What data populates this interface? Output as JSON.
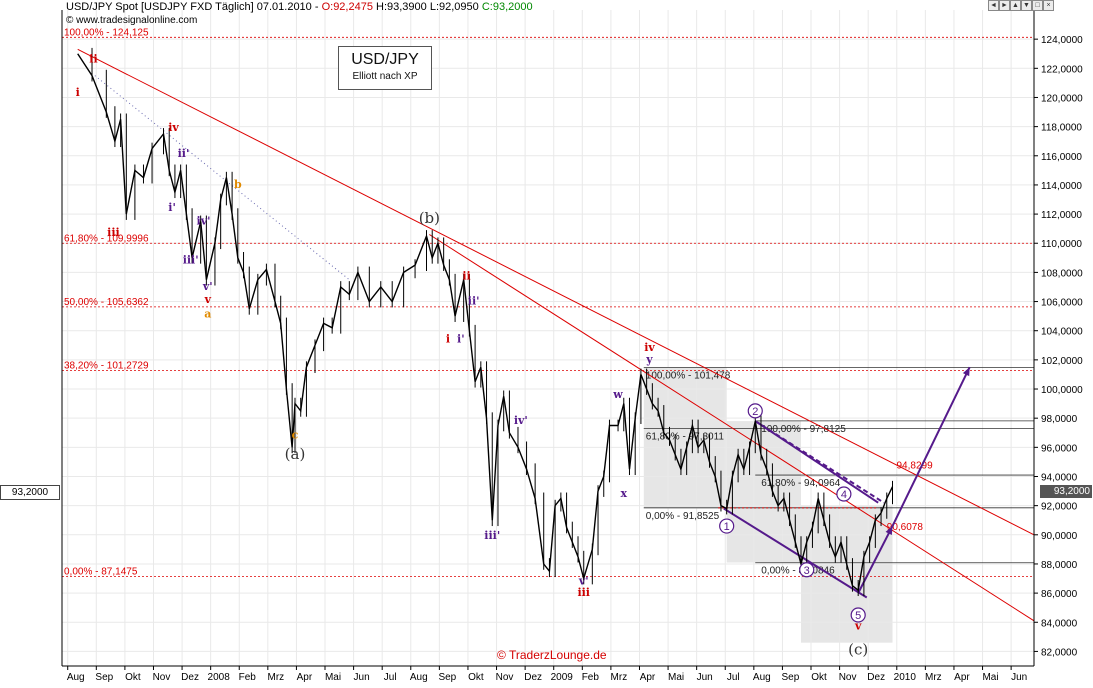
{
  "header": {
    "title": "USD/JPY Spot [USDJPY FXD  Täglich] 07.01.2010",
    "open": "O:92,2475",
    "high": "H:93,3900",
    "low": "L:92,0950",
    "close": "C:93,2000",
    "copyright": "© www.tradesignalonline.com"
  },
  "window_buttons": [
    "◄",
    "►",
    "▲",
    "▼",
    "□",
    "×"
  ],
  "titlebox": {
    "line1": "USD/JPY",
    "line2": "Elliott nach XP"
  },
  "footer_credit": "© TraderzLounge.de",
  "current_price_tag": "93,2000",
  "colors": {
    "price": "#000000",
    "trend": "#dd0000",
    "fib": "#dd0000",
    "wave_purple": "#551a8b",
    "wave_red": "#cc0000",
    "wave_orange": "#e08a00",
    "zone_fill": "#e6e6e6",
    "grid": "#e9e9e9"
  },
  "chart_data": {
    "type": "line",
    "y_axis": {
      "min": 81,
      "max": 126,
      "side": "right",
      "ticks": [
        82,
        84,
        86,
        88,
        90,
        92,
        94,
        96,
        98,
        100,
        102,
        104,
        106,
        108,
        110,
        112,
        114,
        116,
        118,
        120,
        122,
        124
      ],
      "tick_labels": [
        "82,0000",
        "84,0000",
        "86,0000",
        "88,0000",
        "90,0000",
        "92,0000",
        "94,0000",
        "96,0000",
        "98,0000",
        "100,0000",
        "102,0000",
        "104,0000",
        "106,0000",
        "108,0000",
        "110,0000",
        "112,0000",
        "114,0000",
        "116,0000",
        "118,0000",
        "120,0000",
        "122,0000",
        "124,0000"
      ]
    },
    "x_axis": {
      "months": [
        "Aug",
        "Sep",
        "Okt",
        "Nov",
        "Dez",
        "2008",
        "Feb",
        "Mrz",
        "Apr",
        "Mai",
        "Jun",
        "Jul",
        "Aug",
        "Sep",
        "Okt",
        "Nov",
        "Dez",
        "2009",
        "Feb",
        "Mrz",
        "Apr",
        "Mai",
        "Jun",
        "Jul",
        "Aug",
        "Sep",
        "Okt",
        "Nov",
        "Dez",
        "2010",
        "Mrz",
        "Apr",
        "Mai",
        "Jun"
      ]
    },
    "series": [
      {
        "name": "USD/JPY",
        "points": [
          [
            0,
            123.0
          ],
          [
            0.5,
            121.5
          ],
          [
            1.0,
            119.0
          ],
          [
            1.3,
            117.0
          ],
          [
            1.5,
            118.5
          ],
          [
            1.7,
            112.0
          ],
          [
            2.0,
            115.0
          ],
          [
            2.3,
            114.5
          ],
          [
            2.6,
            116.5
          ],
          [
            3.0,
            117.5
          ],
          [
            3.2,
            115.0
          ],
          [
            3.4,
            113.5
          ],
          [
            3.6,
            115.0
          ],
          [
            3.8,
            112.0
          ],
          [
            4.0,
            109.0
          ],
          [
            4.3,
            111.5
          ],
          [
            4.5,
            107.5
          ],
          [
            4.8,
            110.0
          ],
          [
            5.0,
            113.0
          ],
          [
            5.2,
            114.5
          ],
          [
            5.4,
            112.0
          ],
          [
            5.6,
            109.0
          ],
          [
            5.8,
            108.0
          ],
          [
            6.0,
            105.5
          ],
          [
            6.3,
            107.5
          ],
          [
            6.6,
            108.2
          ],
          [
            6.9,
            106.0
          ],
          [
            7.1,
            104.5
          ],
          [
            7.3,
            100.0
          ],
          [
            7.5,
            96.0
          ],
          [
            7.6,
            99.0
          ],
          [
            7.8,
            98.5
          ],
          [
            8.0,
            101.5
          ],
          [
            8.3,
            103.0
          ],
          [
            8.6,
            104.5
          ],
          [
            8.9,
            104.2
          ],
          [
            9.2,
            107.0
          ],
          [
            9.5,
            106.5
          ],
          [
            9.8,
            108.0
          ],
          [
            10.2,
            106.0
          ],
          [
            10.6,
            107.0
          ],
          [
            11.0,
            106.0
          ],
          [
            11.4,
            108.0
          ],
          [
            11.8,
            108.5
          ],
          [
            12.2,
            110.5
          ],
          [
            12.4,
            109.0
          ],
          [
            12.6,
            110.0
          ],
          [
            12.8,
            108.5
          ],
          [
            13.0,
            107.5
          ],
          [
            13.2,
            105.0
          ],
          [
            13.5,
            107.5
          ],
          [
            13.7,
            104.0
          ],
          [
            13.9,
            100.5
          ],
          [
            14.1,
            101.5
          ],
          [
            14.3,
            98.0
          ],
          [
            14.5,
            91.0
          ],
          [
            14.7,
            97.5
          ],
          [
            14.9,
            99.5
          ],
          [
            15.1,
            97.0
          ],
          [
            15.4,
            96.0
          ],
          [
            15.7,
            94.5
          ],
          [
            16.0,
            92.5
          ],
          [
            16.3,
            88.0
          ],
          [
            16.5,
            87.5
          ],
          [
            16.7,
            92.0
          ],
          [
            16.9,
            92.5
          ],
          [
            17.1,
            90.5
          ],
          [
            17.3,
            89.5
          ],
          [
            17.5,
            88.5
          ],
          [
            17.7,
            87.0
          ],
          [
            18.0,
            89.0
          ],
          [
            18.2,
            93.0
          ],
          [
            18.4,
            94.0
          ],
          [
            18.6,
            97.5
          ],
          [
            18.9,
            97.5
          ],
          [
            19.1,
            99.0
          ],
          [
            19.3,
            94.5
          ],
          [
            19.5,
            98.0
          ],
          [
            19.7,
            101.0
          ],
          [
            19.9,
            100.0
          ],
          [
            20.1,
            99.0
          ],
          [
            20.3,
            98.5
          ],
          [
            20.5,
            97.0
          ],
          [
            20.7,
            96.5
          ],
          [
            20.9,
            95.5
          ],
          [
            21.1,
            94.5
          ],
          [
            21.3,
            96.0
          ],
          [
            21.5,
            97.5
          ],
          [
            21.7,
            96.0
          ],
          [
            21.9,
            96.5
          ],
          [
            22.1,
            95.0
          ],
          [
            22.3,
            94.0
          ],
          [
            22.5,
            92.0
          ],
          [
            22.7,
            91.8
          ],
          [
            22.9,
            94.0
          ],
          [
            23.1,
            95.5
          ],
          [
            23.3,
            94.5
          ],
          [
            23.5,
            96.0
          ],
          [
            23.7,
            97.8
          ],
          [
            23.9,
            95.5
          ],
          [
            24.1,
            94.5
          ],
          [
            24.3,
            93.0
          ],
          [
            24.5,
            92.0
          ],
          [
            24.7,
            92.5
          ],
          [
            24.9,
            91.0
          ],
          [
            25.1,
            89.5
          ],
          [
            25.3,
            88.0
          ],
          [
            25.5,
            89.5
          ],
          [
            25.7,
            90.5
          ],
          [
            25.9,
            92.5
          ],
          [
            26.1,
            91.0
          ],
          [
            26.3,
            89.5
          ],
          [
            26.5,
            88.5
          ],
          [
            26.7,
            89.5
          ],
          [
            26.9,
            88.0
          ],
          [
            27.1,
            86.5
          ],
          [
            27.3,
            86.2
          ],
          [
            27.5,
            88.5
          ],
          [
            27.7,
            89.5
          ],
          [
            27.9,
            91.0
          ],
          [
            28.1,
            91.5
          ],
          [
            28.3,
            92.5
          ],
          [
            28.5,
            93.3
          ]
        ]
      }
    ],
    "annotations": {
      "fib_left": [
        {
          "label": "100,00% - 124,125",
          "y": 124.125
        },
        {
          "label": "61,80% - 109,9996",
          "y": 109.9996
        },
        {
          "label": "50,00% - 105,6362",
          "y": 105.6362
        },
        {
          "label": "38,20% - 101,2729",
          "y": 101.2729
        },
        {
          "label": "0,00% - 87,1475",
          "y": 87.1475
        }
      ],
      "fib_right": [
        {
          "label": "100,00% - 101,478",
          "y": 101.478
        },
        {
          "label": "61,80% - 97,3011",
          "y": 97.3011
        },
        {
          "label": "0,00% - 91,8525",
          "y": 91.8525
        }
      ],
      "fib_right2": [
        {
          "label": "100,00% - 97,8125",
          "y": 97.8125
        },
        {
          "label": "61,80% - 94,0964",
          "y": 94.0964
        },
        {
          "label": "0,00% - 88,0846",
          "y": 88.0846
        }
      ],
      "targets": [
        {
          "label": "94,8299",
          "y": 94.8299
        },
        {
          "label": "90,6078",
          "y": 90.6078
        }
      ],
      "wave_labels_big": [
        {
          "text": "(a)",
          "x": 7.6,
          "y": 95.2
        },
        {
          "text": "(b)",
          "x": 12.3,
          "y": 111.4
        },
        {
          "text": "(c)",
          "x": 27.3,
          "y": 81.8
        }
      ],
      "wave_labels_small": [
        {
          "text": "i",
          "x": 0.0,
          "y": 120.1,
          "c": "wave_red"
        },
        {
          "text": "ii",
          "x": 0.55,
          "y": 122.4,
          "c": "wave_red"
        },
        {
          "text": "iii",
          "x": 1.25,
          "y": 110.5,
          "c": "wave_red"
        },
        {
          "text": "iv",
          "x": 3.35,
          "y": 117.7,
          "c": "wave_red"
        },
        {
          "text": "v",
          "x": 4.55,
          "y": 105.9,
          "c": "wave_red"
        },
        {
          "text": "b",
          "x": 5.6,
          "y": 113.8,
          "c": "wave_orange"
        },
        {
          "text": "a",
          "x": 4.55,
          "y": 104.9,
          "c": "wave_orange"
        },
        {
          "text": "c",
          "x": 7.6,
          "y": 96.6,
          "c": "wave_orange"
        },
        {
          "text": "i'",
          "x": 3.3,
          "y": 112.2,
          "c": "wave_purple"
        },
        {
          "text": "ii'",
          "x": 3.7,
          "y": 115.9,
          "c": "wave_purple"
        },
        {
          "text": "iii'",
          "x": 3.95,
          "y": 108.6,
          "c": "wave_purple"
        },
        {
          "text": "iv'",
          "x": 4.4,
          "y": 111.3,
          "c": "wave_purple"
        },
        {
          "text": "v'",
          "x": 4.55,
          "y": 106.8,
          "c": "wave_purple"
        },
        {
          "text": "ii",
          "x": 13.6,
          "y": 107.5,
          "c": "wave_red"
        },
        {
          "text": "ii'",
          "x": 13.85,
          "y": 105.8,
          "c": "wave_purple"
        },
        {
          "text": "i",
          "x": 12.95,
          "y": 103.2,
          "c": "wave_red"
        },
        {
          "text": "i'",
          "x": 13.4,
          "y": 103.2,
          "c": "wave_purple"
        },
        {
          "text": "iv'",
          "x": 15.5,
          "y": 97.6,
          "c": "wave_purple"
        },
        {
          "text": "iii'",
          "x": 14.5,
          "y": 89.7,
          "c": "wave_purple"
        },
        {
          "text": "w",
          "x": 18.9,
          "y": 99.4,
          "c": "wave_purple"
        },
        {
          "text": "x",
          "x": 19.1,
          "y": 92.6,
          "c": "wave_purple"
        },
        {
          "text": "v'",
          "x": 17.7,
          "y": 86.6,
          "c": "wave_purple"
        },
        {
          "text": "iii",
          "x": 17.7,
          "y": 85.8,
          "c": "wave_red"
        },
        {
          "text": "iv",
          "x": 20.0,
          "y": 102.6,
          "c": "wave_red"
        },
        {
          "text": "y",
          "x": 20.0,
          "y": 101.8,
          "c": "wave_purple"
        },
        {
          "text": "v",
          "x": 27.3,
          "y": 83.5,
          "c": "wave_red"
        }
      ],
      "circle_labels": [
        {
          "text": "1",
          "x": 22.7,
          "y": 90.6
        },
        {
          "text": "2",
          "x": 23.7,
          "y": 98.5
        },
        {
          "text": "3",
          "x": 25.5,
          "y": 87.6
        },
        {
          "text": "4",
          "x": 26.8,
          "y": 92.8
        },
        {
          "text": "5",
          "x": 27.3,
          "y": 84.5
        }
      ]
    }
  }
}
